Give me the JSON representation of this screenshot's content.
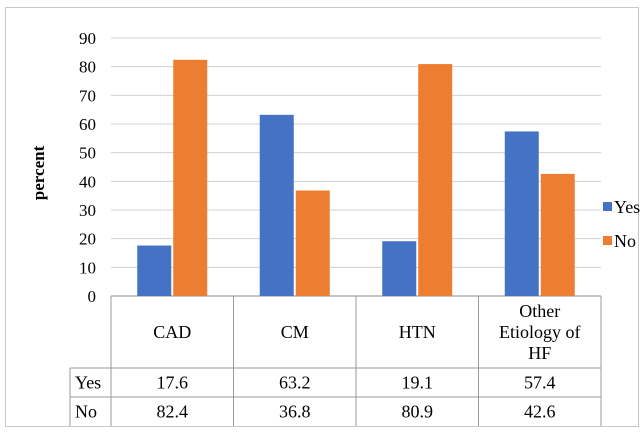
{
  "chart_data": {
    "type": "bar",
    "ylabel": "percent",
    "ylim": [
      0,
      90
    ],
    "ytick_step": 10,
    "categories": [
      [
        "CAD"
      ],
      [
        "CM"
      ],
      [
        "HTN"
      ],
      [
        "Other",
        "Etiology of",
        "HF"
      ]
    ],
    "series": [
      {
        "name": "Yes",
        "values": [
          17.6,
          63.2,
          19.1,
          57.4
        ],
        "color": "#4472C4"
      },
      {
        "name": "No",
        "values": [
          82.4,
          36.8,
          80.9,
          42.6
        ],
        "color": "#ED7D31"
      }
    ],
    "data_table": true,
    "legend": "right",
    "grid": true
  }
}
